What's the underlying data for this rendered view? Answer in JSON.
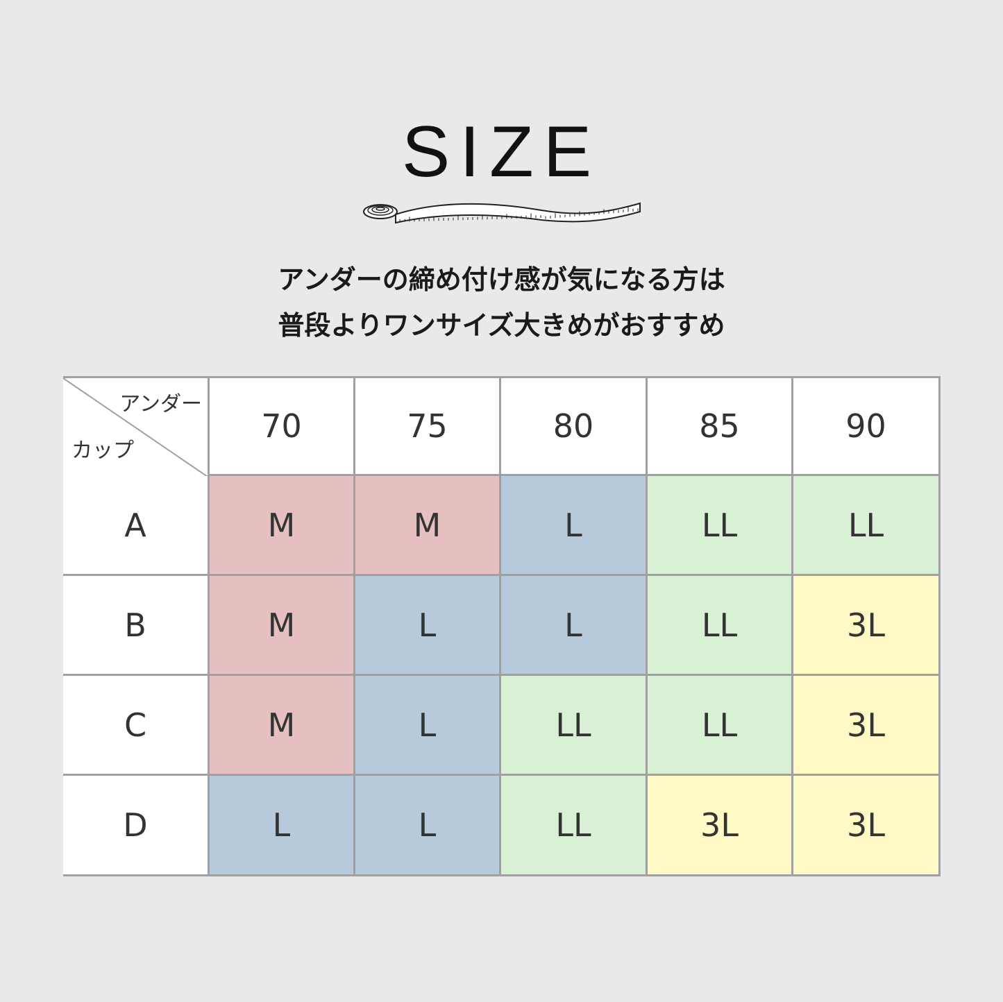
{
  "title": "SIZE",
  "tape_icon": "measuring-tape-icon",
  "lead": [
    "アンダーの締め付け感が気になる方は",
    "普段よりワンサイズ大きめがおすすめ"
  ],
  "table": {
    "corner_top": "アンダー",
    "corner_bottom": "カップ",
    "columns": [
      "70",
      "75",
      "80",
      "85",
      "90"
    ],
    "rows": [
      {
        "cup": "A",
        "sizes": [
          "M",
          "M",
          "L",
          "LL",
          "LL"
        ]
      },
      {
        "cup": "B",
        "sizes": [
          "M",
          "L",
          "L",
          "LL",
          "3L"
        ]
      },
      {
        "cup": "C",
        "sizes": [
          "M",
          "L",
          "LL",
          "LL",
          "3L"
        ]
      },
      {
        "cup": "D",
        "sizes": [
          "L",
          "L",
          "LL",
          "3L",
          "3L"
        ]
      }
    ]
  },
  "colors": {
    "M": "#e6bfc0",
    "L": "#b6cadb",
    "LL": "#d8f0d4",
    "3L": "#fdf8c4",
    "header": "#ffffff",
    "background": "#e8e9eb",
    "grid": "#a0a0a0"
  }
}
